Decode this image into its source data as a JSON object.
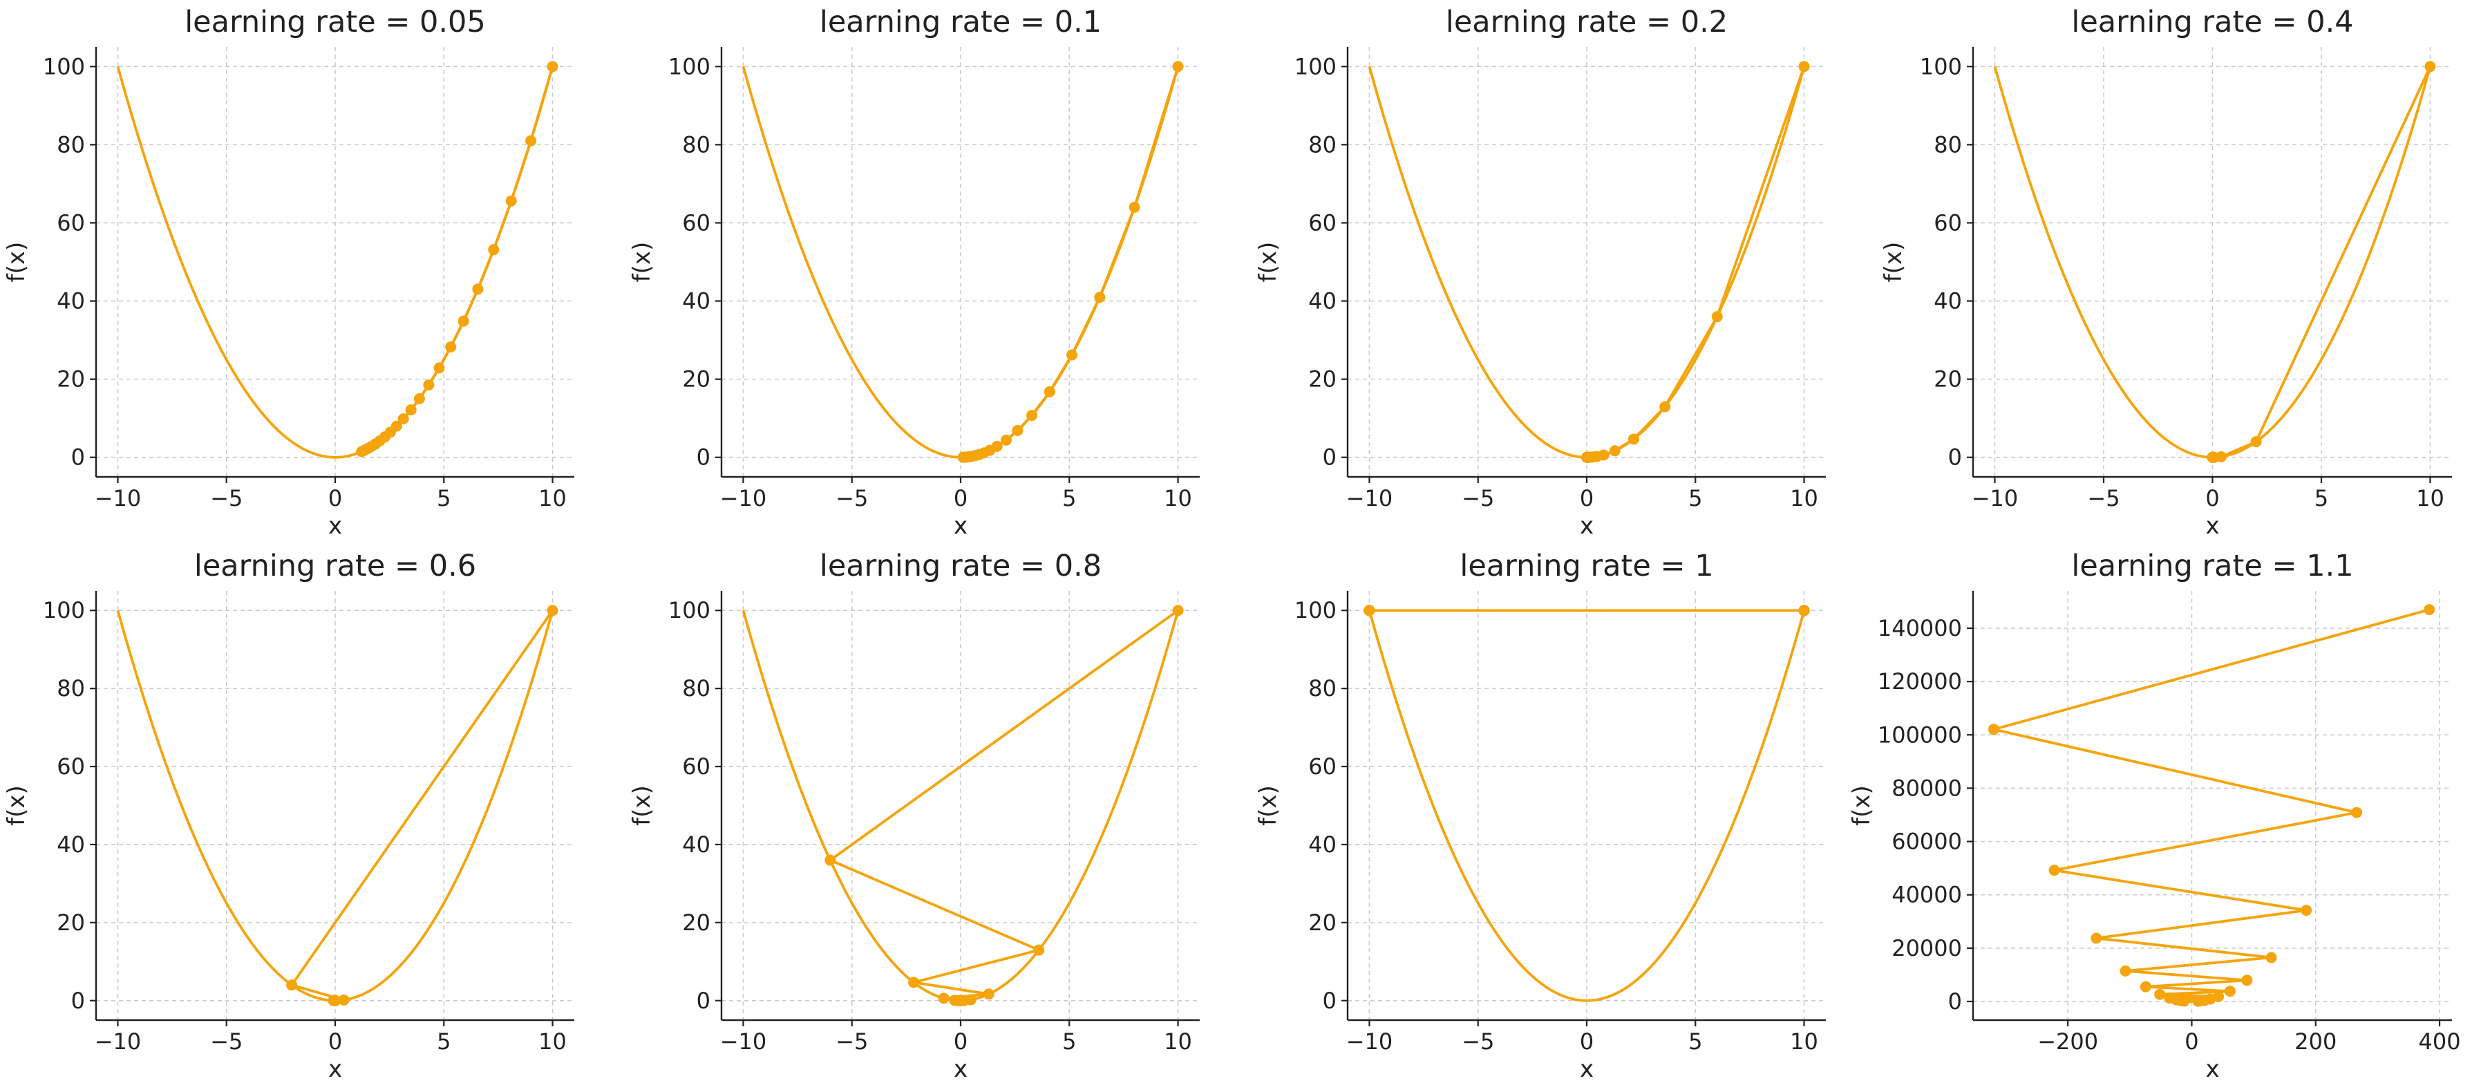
{
  "figure": {
    "line_color": "#f5a40c"
  },
  "chart_data": [
    {
      "type": "line",
      "title": "learning rate = 0.05",
      "xlabel": "x",
      "ylabel": "f(x)",
      "xlim": [
        -11,
        11
      ],
      "ylim": [
        -5,
        105
      ],
      "xticks": [
        -10,
        -5,
        0,
        5,
        10
      ],
      "yticks": [
        0,
        20,
        40,
        60,
        80,
        100
      ],
      "grid": true,
      "series": [
        {
          "values": {
            "x": [
              10,
              9,
              8.1,
              7.29,
              6.561,
              5.9049,
              5.3144,
              4.783,
              4.3047,
              3.8742,
              3.4868,
              3.1381,
              2.8243,
              2.5419,
              2.2877,
              2.0589,
              1.853,
              1.6677,
              1.5009,
              1.3509,
              1.2158
            ],
            "y": [
              100,
              81,
              65.61,
              53.14,
              43.05,
              34.87,
              28.24,
              22.88,
              18.53,
              15.01,
              12.16,
              9.85,
              7.98,
              6.46,
              5.23,
              4.24,
              3.43,
              2.78,
              2.25,
              1.82,
              1.48
            ]
          }
        }
      ]
    },
    {
      "type": "line",
      "title": "learning rate = 0.1",
      "xlabel": "x",
      "ylabel": "f(x)",
      "xlim": [
        -11,
        11
      ],
      "ylim": [
        -5,
        105
      ],
      "xticks": [
        -10,
        -5,
        0,
        5,
        10
      ],
      "yticks": [
        0,
        20,
        40,
        60,
        80,
        100
      ],
      "grid": true,
      "series": [
        {
          "values": {
            "x": [
              10,
              8,
              6.4,
              5.12,
              4.096,
              3.2768,
              2.6214,
              2.0972,
              1.6777,
              1.3422,
              1.0737,
              0.859,
              0.6872,
              0.5498,
              0.4398,
              0.3518,
              0.2815,
              0.2252,
              0.1801,
              0.1441,
              0.1153
            ],
            "y": [
              100,
              64,
              40.96,
              26.21,
              16.78,
              10.74,
              6.87,
              4.4,
              2.81,
              1.8,
              1.15,
              0.74,
              0.47,
              0.3,
              0.19,
              0.12,
              0.08,
              0.05,
              0.03,
              0.02,
              0.01
            ]
          }
        }
      ]
    },
    {
      "type": "line",
      "title": "learning rate = 0.2",
      "xlabel": "x",
      "ylabel": "f(x)",
      "xlim": [
        -11,
        11
      ],
      "ylim": [
        -5,
        105
      ],
      "xticks": [
        -10,
        -5,
        0,
        5,
        10
      ],
      "yticks": [
        0,
        20,
        40,
        60,
        80,
        100
      ],
      "grid": true,
      "series": [
        {
          "values": {
            "x": [
              10,
              6,
              3.6,
              2.16,
              1.296,
              0.7776,
              0.4666,
              0.2799,
              0.168,
              0.1008,
              0.0605,
              0.0363,
              0.0218,
              0.0131,
              0.0078,
              0.0047,
              0.0028,
              0.0017,
              0.001,
              0.0006,
              0.0004
            ],
            "y": [
              100,
              36,
              12.96,
              4.67,
              1.68,
              0.6,
              0.22,
              0.08,
              0.03,
              0.01,
              0,
              0,
              0,
              0,
              0,
              0,
              0,
              0,
              0,
              0,
              0
            ]
          }
        }
      ]
    },
    {
      "type": "line",
      "title": "learning rate = 0.4",
      "xlabel": "x",
      "ylabel": "f(x)",
      "xlim": [
        -11,
        11
      ],
      "ylim": [
        -5,
        105
      ],
      "xticks": [
        -10,
        -5,
        0,
        5,
        10
      ],
      "yticks": [
        0,
        20,
        40,
        60,
        80,
        100
      ],
      "grid": true,
      "series": [
        {
          "values": {
            "x": [
              10,
              2,
              0.4,
              0.08,
              0.016,
              0.0032,
              0.0006,
              0.0001,
              0,
              0,
              0,
              0,
              0,
              0,
              0,
              0,
              0,
              0,
              0,
              0,
              0
            ],
            "y": [
              100,
              4,
              0.16,
              0.01,
              0,
              0,
              0,
              0,
              0,
              0,
              0,
              0,
              0,
              0,
              0,
              0,
              0,
              0,
              0,
              0,
              0
            ]
          }
        }
      ]
    },
    {
      "type": "line",
      "title": "learning rate = 0.6",
      "xlabel": "x",
      "ylabel": "f(x)",
      "xlim": [
        -11,
        11
      ],
      "ylim": [
        -5,
        105
      ],
      "xticks": [
        -10,
        -5,
        0,
        5,
        10
      ],
      "yticks": [
        0,
        20,
        40,
        60,
        80,
        100
      ],
      "grid": true,
      "series": [
        {
          "values": {
            "x": [
              10,
              -2,
              0.4,
              -0.08,
              0.016,
              -0.0032,
              0.0006,
              -0.0001,
              0,
              0,
              0,
              0,
              0,
              0,
              0,
              0,
              0,
              0,
              0,
              0,
              0
            ],
            "y": [
              100,
              4,
              0.16,
              0.01,
              0,
              0,
              0,
              0,
              0,
              0,
              0,
              0,
              0,
              0,
              0,
              0,
              0,
              0,
              0,
              0,
              0
            ]
          }
        }
      ]
    },
    {
      "type": "line",
      "title": "learning rate = 0.8",
      "xlabel": "x",
      "ylabel": "f(x)",
      "xlim": [
        -11,
        11
      ],
      "ylim": [
        -5,
        105
      ],
      "xticks": [
        -10,
        -5,
        0,
        5,
        10
      ],
      "yticks": [
        0,
        20,
        40,
        60,
        80,
        100
      ],
      "grid": true,
      "series": [
        {
          "values": {
            "x": [
              10,
              -6,
              3.6,
              -2.16,
              1.296,
              -0.7776,
              0.4666,
              -0.2799,
              0.168,
              -0.1008,
              0.0605,
              -0.0363,
              0.0218,
              -0.0131,
              0.0078,
              -0.0047,
              0.0028,
              -0.0017,
              0.001,
              -0.0006,
              0.0004
            ],
            "y": [
              100,
              36,
              12.96,
              4.67,
              1.68,
              0.6,
              0.22,
              0.08,
              0.03,
              0.01,
              0,
              0,
              0,
              0,
              0,
              0,
              0,
              0,
              0,
              0,
              0
            ]
          }
        }
      ]
    },
    {
      "type": "line",
      "title": "learning rate = 1",
      "xlabel": "x",
      "ylabel": "f(x)",
      "xlim": [
        -11,
        11
      ],
      "ylim": [
        -5,
        105
      ],
      "xticks": [
        -10,
        -5,
        0,
        5,
        10
      ],
      "yticks": [
        0,
        20,
        40,
        60,
        80,
        100
      ],
      "grid": true,
      "series": [
        {
          "values": {
            "x": [
              10,
              -10,
              10,
              -10,
              10,
              -10,
              10,
              -10,
              10,
              -10,
              10,
              -10,
              10,
              -10,
              10,
              -10,
              10,
              -10,
              10,
              -10,
              10
            ],
            "y": [
              100,
              100,
              100,
              100,
              100,
              100,
              100,
              100,
              100,
              100,
              100,
              100,
              100,
              100,
              100,
              100,
              100,
              100,
              100,
              100,
              100
            ]
          }
        }
      ]
    },
    {
      "type": "line",
      "title": "learning rate = 1.1",
      "xlabel": "x",
      "ylabel": "f(x)",
      "xlim": [
        -353,
        420
      ],
      "ylim": [
        -7000,
        154000
      ],
      "xticks": [
        -200,
        0,
        200,
        400
      ],
      "yticks": [
        0,
        20000,
        40000,
        60000,
        80000,
        100000,
        120000,
        140000
      ],
      "grid": true,
      "series": [
        {
          "values": {
            "x": [
              10,
              -12,
              14.4,
              -17.28,
              20.736,
              -24.883,
              29.86,
              -35.832,
              42.998,
              -51.598,
              61.917,
              -74.301,
              89.161,
              -106.993,
              128.392,
              -154.07,
              184.884,
              -221.861,
              266.233,
              -319.48,
              383.376
            ],
            "y": [
              100,
              144,
              207.36,
              298.6,
              429.98,
              619.17,
              891.6,
              1283.9,
              1848.8,
              2662.3,
              3833.7,
              5520.6,
              7949.7,
              11447.5,
              16484.5,
              23737.6,
              34182.1,
              49222.2,
              70880,
              102067.6,
              146977.2
            ]
          }
        }
      ]
    }
  ]
}
